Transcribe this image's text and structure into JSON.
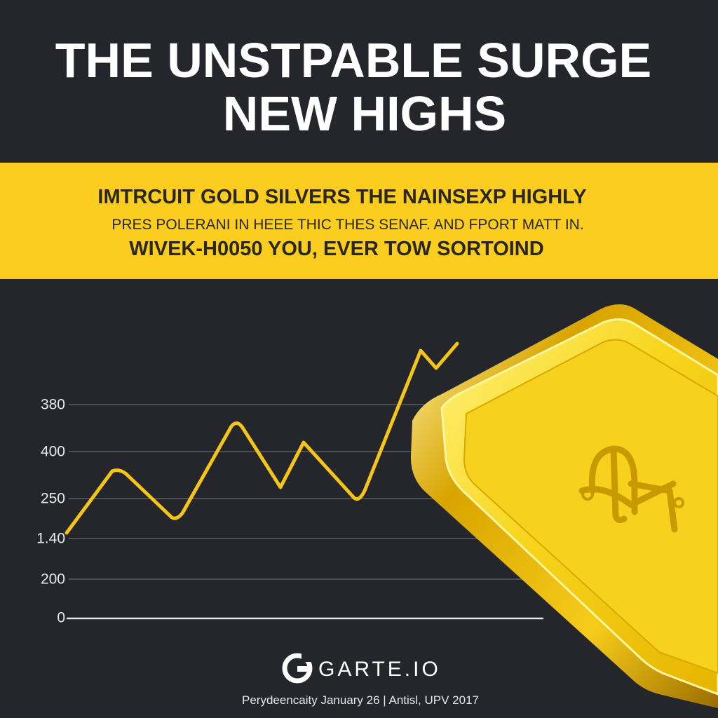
{
  "header": {
    "title_line1": "THE UNSTPABLE SURGE",
    "title_line2": "NEW HIGHS"
  },
  "banner": {
    "line1": "IMTRCUIT GOLD SILVERS THE NAINSEXP HIGHLY",
    "line2": "PRES POLERANI IN HEEE THIC THES SENAF. AND FPORT MATT IN.",
    "line3": "WIVEK-H0050 YOU, EVER TOW SORTOIND"
  },
  "chart": {
    "axis_labels": [
      "380",
      "400",
      "250",
      "1.40",
      "200",
      "0"
    ]
  },
  "footer": {
    "brand": "GARTE.IO",
    "dateline": "Perydeencaity January 26 | Antisl, UPV 2017"
  }
}
